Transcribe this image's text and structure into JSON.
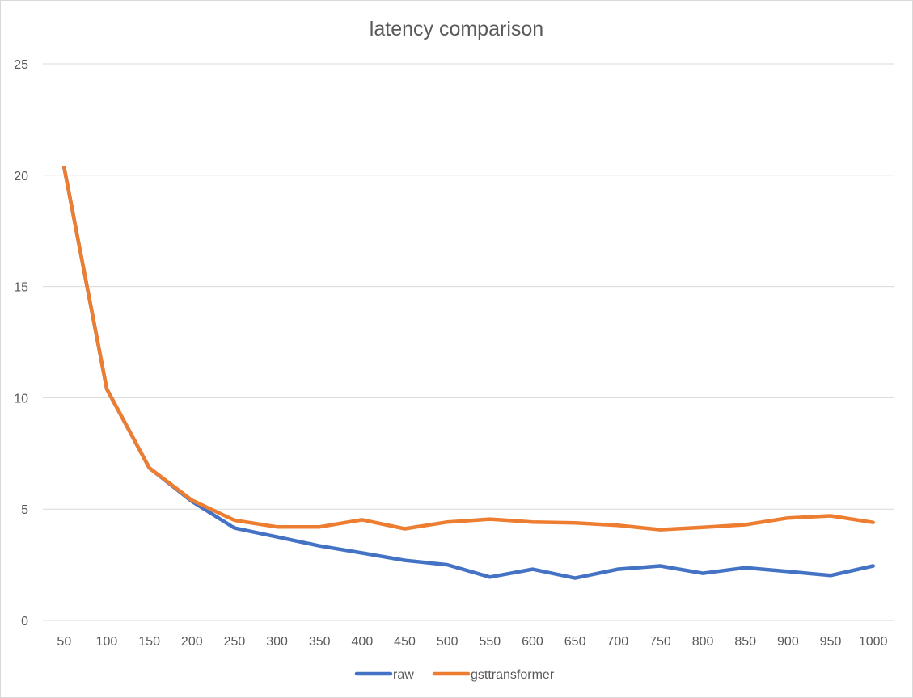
{
  "chart_data": {
    "type": "line",
    "title": "latency comparison",
    "xlabel": "",
    "ylabel": "",
    "categories": [
      "50",
      "100",
      "150",
      "200",
      "250",
      "300",
      "350",
      "400",
      "450",
      "500",
      "550",
      "600",
      "650",
      "700",
      "750",
      "800",
      "850",
      "900",
      "950",
      "1000"
    ],
    "y_ticks": [
      "0",
      "5",
      "10",
      "15",
      "20",
      "25"
    ],
    "ylim": [
      0,
      25
    ],
    "grid": true,
    "legend_position": "bottom",
    "series": [
      {
        "name": "raw",
        "color": "#4472c4",
        "values": [
          20.35,
          10.4,
          6.85,
          5.35,
          4.15,
          3.75,
          3.35,
          3.03,
          2.7,
          2.5,
          1.95,
          2.3,
          1.9,
          2.3,
          2.45,
          2.12,
          2.37,
          2.2,
          2.02,
          2.45
        ]
      },
      {
        "name": "gsttransformer",
        "color": "#ed7d31",
        "values": [
          20.35,
          10.4,
          6.85,
          5.4,
          4.5,
          4.2,
          4.2,
          4.52,
          4.12,
          4.42,
          4.55,
          4.42,
          4.38,
          4.27,
          4.08,
          4.18,
          4.3,
          4.6,
          4.7,
          4.4
        ]
      }
    ]
  }
}
